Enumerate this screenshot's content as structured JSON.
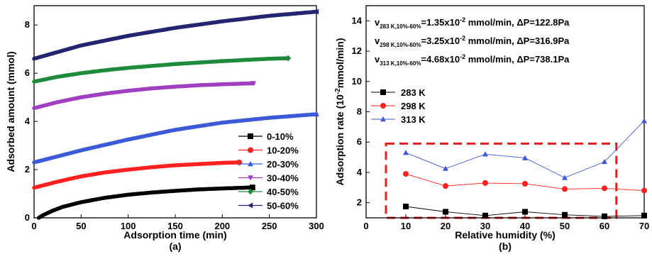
{
  "chart_data": [
    {
      "type": "line",
      "caption": "(a)",
      "xlabel": "Adsorption time (min)",
      "ylabel": "Adsorbed amount (mmol)",
      "xlim": [
        0,
        300
      ],
      "ylim": [
        0,
        8.8
      ],
      "xticks": [
        0,
        50,
        100,
        150,
        200,
        250,
        300
      ],
      "yticks": [
        0,
        2,
        4,
        6,
        8
      ],
      "legend_position": "bottom-right",
      "series": [
        {
          "name": "0-10%",
          "color": "#000000",
          "marker": "square",
          "x": [
            5,
            10,
            20,
            30,
            50,
            75,
            100,
            125,
            150,
            175,
            200,
            232
          ],
          "y": [
            0.0,
            0.12,
            0.3,
            0.45,
            0.65,
            0.83,
            0.96,
            1.05,
            1.12,
            1.18,
            1.22,
            1.26
          ]
        },
        {
          "name": "10-20%",
          "color": "#ff2020",
          "marker": "circle",
          "x": [
            0,
            25,
            50,
            75,
            100,
            125,
            150,
            175,
            200,
            218
          ],
          "y": [
            1.25,
            1.5,
            1.72,
            1.88,
            2.0,
            2.1,
            2.18,
            2.23,
            2.28,
            2.3
          ]
        },
        {
          "name": "20-30%",
          "color": "#3c5ad8",
          "marker": "triangle-up",
          "x": [
            0,
            50,
            100,
            150,
            200,
            250,
            300
          ],
          "y": [
            2.3,
            2.8,
            3.25,
            3.65,
            3.95,
            4.15,
            4.3
          ]
        },
        {
          "name": "30-40%",
          "color": "#a040c0",
          "marker": "triangle-down",
          "x": [
            0,
            25,
            50,
            75,
            100,
            125,
            150,
            175,
            200,
            233
          ],
          "y": [
            4.55,
            4.8,
            5.0,
            5.15,
            5.27,
            5.37,
            5.44,
            5.5,
            5.54,
            5.58
          ]
        },
        {
          "name": "40-50%",
          "color": "#1e8a3c",
          "marker": "diamond",
          "x": [
            0,
            25,
            50,
            75,
            100,
            125,
            150,
            175,
            200,
            225,
            250,
            270
          ],
          "y": [
            5.65,
            5.85,
            6.0,
            6.12,
            6.22,
            6.3,
            6.38,
            6.44,
            6.5,
            6.55,
            6.6,
            6.62
          ]
        },
        {
          "name": "50-60%",
          "color": "#242470",
          "marker": "triangle-left",
          "x": [
            0,
            50,
            100,
            150,
            200,
            250,
            300
          ],
          "y": [
            6.6,
            7.15,
            7.55,
            7.88,
            8.15,
            8.38,
            8.55
          ]
        }
      ]
    },
    {
      "type": "line",
      "caption": "(b)",
      "xlabel": "Relative humidity (%)",
      "ylabel": "Adsorption rate (10",
      "ylabel_sup": "-2",
      "ylabel_end": "mmol/min)",
      "xlim": [
        0,
        70
      ],
      "ylim": [
        1,
        15
      ],
      "xticks": [
        0,
        10,
        20,
        30,
        40,
        50,
        60,
        70
      ],
      "yticks": [
        2,
        4,
        6,
        8,
        10,
        12,
        14
      ],
      "legend_position": "middle-left",
      "annotations": [
        {
          "prefix": "v",
          "sub": "283 K,10%-60%",
          "text": "=1.35x10",
          "sup": "-2",
          "text_end": " mmol/min, ΔP=122.8Pa"
        },
        {
          "prefix": "v",
          "sub": "298 K,10%-60%",
          "text": "=3.25x10",
          "sup": "-2",
          "text_end": " mmol/min, ΔP=316.9Pa"
        },
        {
          "prefix": "v",
          "sub": "313 K,10%-60%",
          "text": "=4.68x10",
          "sup": "-2",
          "text_end": " mmol/min, ΔP=738.1Pa"
        }
      ],
      "highlight_box": {
        "x": [
          5,
          63
        ],
        "y": [
          1,
          5.9
        ],
        "style": "dashed",
        "color": "#e02020"
      },
      "x": [
        10,
        20,
        30,
        40,
        50,
        60,
        70
      ],
      "series": [
        {
          "name": "283 K",
          "color": "#000000",
          "marker": "square",
          "values": [
            1.75,
            1.4,
            1.15,
            1.4,
            1.2,
            1.1,
            1.15
          ]
        },
        {
          "name": "298 K",
          "color": "#ff2020",
          "marker": "circle",
          "values": [
            3.9,
            3.1,
            3.3,
            3.25,
            2.9,
            2.95,
            2.8
          ]
        },
        {
          "name": "313 K",
          "color": "#3c5ad8",
          "marker": "triangle-up",
          "values": [
            5.3,
            4.25,
            5.2,
            4.95,
            3.65,
            4.7,
            7.4
          ]
        }
      ]
    }
  ]
}
